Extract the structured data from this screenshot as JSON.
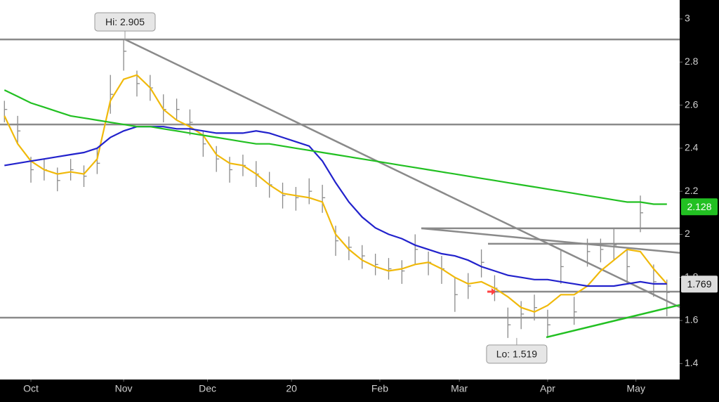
{
  "chart_data": {
    "type": "ohlc",
    "xlim": [
      -7,
      146.9
    ],
    "ylim": [
      1.326,
      3.088
    ],
    "xticks": [
      {
        "value": 0,
        "label": "Oct"
      },
      {
        "value": 21,
        "label": "Nov"
      },
      {
        "value": 40,
        "label": "Dec"
      },
      {
        "value": 59,
        "label": "20"
      },
      {
        "value": 79,
        "label": "Feb"
      },
      {
        "value": 97,
        "label": "Mar"
      },
      {
        "value": 117,
        "label": "Apr"
      },
      {
        "value": 137,
        "label": "May"
      }
    ],
    "yticks": [
      1.4,
      1.6,
      1.8,
      2,
      2.2,
      2.4,
      2.6,
      2.8,
      3
    ],
    "x": [
      -6,
      -3,
      0,
      3,
      6,
      9,
      12,
      15,
      18,
      21,
      24,
      27,
      30,
      33,
      36,
      39,
      42,
      45,
      48,
      51,
      54,
      57,
      60,
      63,
      66,
      69,
      72,
      75,
      78,
      81,
      84,
      87,
      90,
      93,
      96,
      99,
      102,
      105,
      108,
      111,
      114,
      117,
      120,
      123,
      126,
      129,
      132,
      135,
      138,
      141,
      144
    ],
    "bar_color": "#8a8a8a",
    "high": [
      2.62,
      2.55,
      2.36,
      2.35,
      2.31,
      2.35,
      2.32,
      2.4,
      2.74,
      2.905,
      2.76,
      2.74,
      2.65,
      2.63,
      2.58,
      2.48,
      2.41,
      2.36,
      2.37,
      2.34,
      2.29,
      2.24,
      2.22,
      2.26,
      2.23,
      2.04,
      1.99,
      1.95,
      1.91,
      1.89,
      1.88,
      2.0,
      1.92,
      1.9,
      1.8,
      1.82,
      1.93,
      1.81,
      1.66,
      1.69,
      1.72,
      1.65,
      1.93,
      1.71,
      1.98,
      1.98,
      2.03,
      1.93,
      2.18,
      1.86,
      1.79
    ],
    "low": [
      2.52,
      2.42,
      2.24,
      2.25,
      2.2,
      2.25,
      2.22,
      2.28,
      2.56,
      2.76,
      2.64,
      2.62,
      2.52,
      2.53,
      2.46,
      2.36,
      2.29,
      2.24,
      2.27,
      2.22,
      2.17,
      2.12,
      2.11,
      2.14,
      2.1,
      1.9,
      1.88,
      1.84,
      1.81,
      1.79,
      1.77,
      1.86,
      1.81,
      1.77,
      1.64,
      1.7,
      1.8,
      1.69,
      1.519,
      1.56,
      1.6,
      1.52,
      1.77,
      1.58,
      1.85,
      1.87,
      1.88,
      1.77,
      2.01,
      1.71,
      1.62
    ],
    "close": [
      2.58,
      2.48,
      2.3,
      2.3,
      2.25,
      2.3,
      2.27,
      2.33,
      2.65,
      2.85,
      2.7,
      2.68,
      2.58,
      2.58,
      2.52,
      2.42,
      2.35,
      2.3,
      2.32,
      2.28,
      2.23,
      2.18,
      2.17,
      2.2,
      2.17,
      1.97,
      1.94,
      1.9,
      1.86,
      1.84,
      1.83,
      1.93,
      1.87,
      1.84,
      1.72,
      1.76,
      1.87,
      1.75,
      1.58,
      1.63,
      1.66,
      1.58,
      1.85,
      1.64,
      1.92,
      1.93,
      1.95,
      1.85,
      2.1,
      1.78,
      1.73
    ],
    "series": [
      {
        "color": "#f0b90b",
        "values": [
          2.55,
          2.42,
          2.34,
          2.3,
          2.28,
          2.29,
          2.28,
          2.35,
          2.62,
          2.72,
          2.74,
          2.68,
          2.58,
          2.53,
          2.5,
          2.46,
          2.37,
          2.33,
          2.32,
          2.28,
          2.23,
          2.19,
          2.18,
          2.17,
          2.15,
          2.0,
          1.93,
          1.88,
          1.85,
          1.83,
          1.84,
          1.86,
          1.87,
          1.84,
          1.8,
          1.77,
          1.78,
          1.75,
          1.71,
          1.66,
          1.64,
          1.67,
          1.72,
          1.72,
          1.76,
          1.83,
          1.88,
          1.93,
          1.92,
          1.84,
          1.77
        ]
      },
      {
        "color": "#2222cc",
        "values": [
          2.32,
          2.33,
          2.34,
          2.35,
          2.36,
          2.37,
          2.38,
          2.4,
          2.45,
          2.48,
          2.5,
          2.5,
          2.5,
          2.49,
          2.49,
          2.48,
          2.47,
          2.47,
          2.47,
          2.48,
          2.47,
          2.45,
          2.43,
          2.41,
          2.34,
          2.24,
          2.15,
          2.08,
          2.03,
          2.0,
          1.98,
          1.95,
          1.93,
          1.91,
          1.9,
          1.88,
          1.85,
          1.83,
          1.81,
          1.8,
          1.79,
          1.79,
          1.78,
          1.77,
          1.76,
          1.76,
          1.76,
          1.77,
          1.78,
          1.77,
          1.77
        ]
      },
      {
        "color": "#22c022",
        "values": [
          2.67,
          2.64,
          2.61,
          2.59,
          2.57,
          2.55,
          2.54,
          2.53,
          2.52,
          2.51,
          2.5,
          2.5,
          2.49,
          2.48,
          2.47,
          2.46,
          2.45,
          2.44,
          2.43,
          2.42,
          2.42,
          2.41,
          2.4,
          2.39,
          2.38,
          2.37,
          2.36,
          2.35,
          2.34,
          2.33,
          2.32,
          2.31,
          2.3,
          2.29,
          2.28,
          2.27,
          2.26,
          2.25,
          2.24,
          2.23,
          2.22,
          2.21,
          2.2,
          2.19,
          2.18,
          2.17,
          2.16,
          2.15,
          2.15,
          2.14,
          2.14
        ]
      }
    ],
    "lines": [
      {
        "color": "#8a8a8a",
        "x": [
          -7,
          146.9
        ],
        "y": [
          2.905,
          2.905
        ]
      },
      {
        "color": "#8a8a8a",
        "x": [
          -7,
          146.9
        ],
        "y": [
          2.51,
          2.51
        ]
      },
      {
        "color": "#8a8a8a",
        "x": [
          -7,
          146.9
        ],
        "y": [
          1.613,
          1.613
        ]
      },
      {
        "color": "#8a8a8a",
        "x": [
          21.3,
          146.9
        ],
        "y": [
          2.905,
          1.662
        ]
      },
      {
        "color": "#8a8a8a",
        "x": [
          88.4,
          146.9
        ],
        "y": [
          2.028,
          2.028
        ]
      },
      {
        "color": "#8a8a8a",
        "x": [
          88.4,
          146.9
        ],
        "y": [
          2.028,
          1.914
        ]
      },
      {
        "color": "#8a8a8a",
        "x": [
          103.5,
          146.9
        ],
        "y": [
          1.956,
          1.956
        ]
      },
      {
        "color": "#8a8a8a",
        "x": [
          103.5,
          146.9
        ],
        "y": [
          1.734,
          1.734
        ]
      },
      {
        "color": "#22c022",
        "x": [
          116.7,
          146.9
        ],
        "y": [
          1.522,
          1.672
        ]
      }
    ],
    "marker": {
      "x": 104.3,
      "y": 1.734,
      "color": "#ff4040"
    },
    "annotations": [
      {
        "label": "Hi: 2.905",
        "x": 21.3,
        "y": 2.905,
        "position": "above"
      },
      {
        "label": "Lo: 1.519",
        "x": 110,
        "y": 1.519,
        "position": "below"
      }
    ],
    "last_values": [
      {
        "value": 2.128,
        "color": "#22c022"
      },
      {
        "value": 1.769,
        "color": "#dddddd"
      }
    ]
  }
}
